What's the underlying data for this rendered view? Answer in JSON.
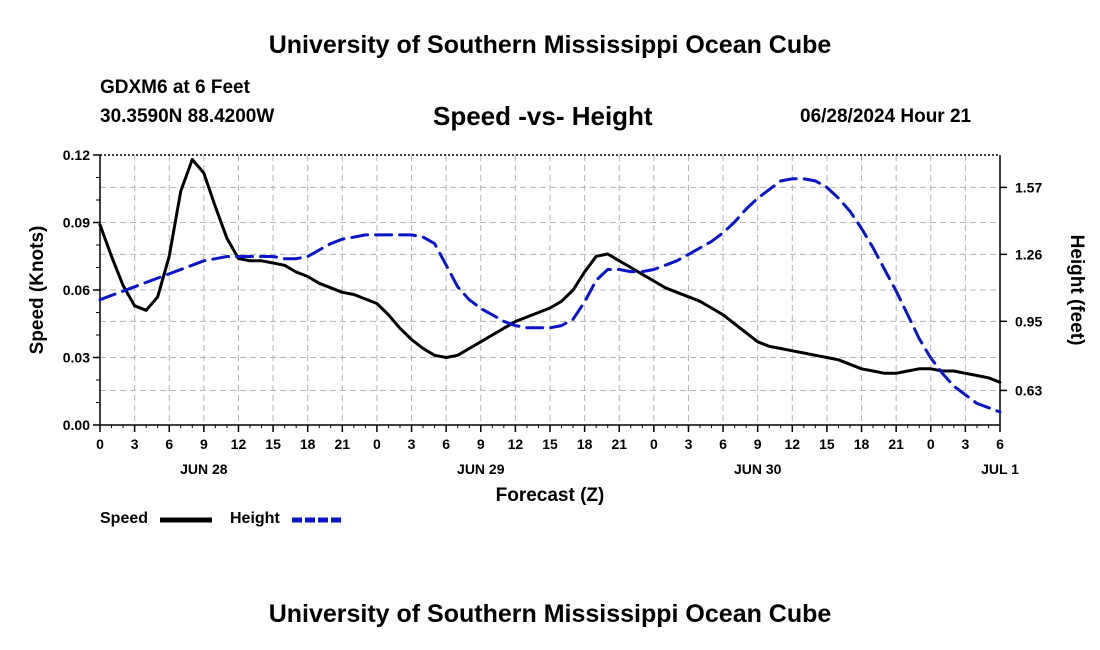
{
  "header": {
    "title": "University of Southern Mississippi Ocean Cube",
    "station": "GDXM6 at 6 Feet",
    "coords": "30.3590N  88.4200W",
    "subtitle": "Speed -vs- Height",
    "datetime": "06/28/2024 Hour 21"
  },
  "footer": {
    "title": "University of Southern Mississippi Ocean Cube"
  },
  "legend": {
    "speed_label": "Speed",
    "height_label": "Height"
  },
  "colors": {
    "speed": "#000000",
    "height": "#0a14c8",
    "grid": "#b4b4b4"
  },
  "chart_data": {
    "type": "line",
    "title": "Speed -vs- Height",
    "xlabel": "Forecast (Z)",
    "ylabel": "Speed (Knots)",
    "y2label": "Height (feet)",
    "x_tick_labels": [
      "0",
      "3",
      "6",
      "9",
      "12",
      "15",
      "18",
      "21",
      "0",
      "3",
      "6",
      "9",
      "12",
      "15",
      "18",
      "21",
      "0",
      "3",
      "6",
      "9",
      "12",
      "15",
      "18",
      "21",
      "0",
      "3",
      "6"
    ],
    "date_labels": [
      {
        "label": "JUN 28",
        "hour": 9
      },
      {
        "label": "JUN 29",
        "hour": 33
      },
      {
        "label": "JUN 30",
        "hour": 57
      },
      {
        "label": "JUL 1",
        "hour": 78
      }
    ],
    "xlim": [
      0,
      78
    ],
    "ylim": [
      0,
      0.12
    ],
    "y_ticks": [
      "0.00",
      "0.03",
      "0.06",
      "0.09",
      "0.12"
    ],
    "y2lim": [
      0.47,
      1.72
    ],
    "y2_ticks": [
      "0.63",
      "0.95",
      "1.26",
      "1.57"
    ],
    "x_hours": [
      0,
      1,
      2,
      3,
      4,
      5,
      6,
      7,
      8,
      9,
      10,
      11,
      12,
      13,
      14,
      15,
      16,
      17,
      18,
      19,
      20,
      21,
      22,
      23,
      24,
      25,
      26,
      27,
      28,
      29,
      30,
      31,
      32,
      33,
      34,
      35,
      36,
      37,
      38,
      39,
      40,
      41,
      42,
      43,
      44,
      45,
      46,
      47,
      48,
      49,
      50,
      51,
      52,
      53,
      54,
      55,
      56,
      57,
      58,
      59,
      60,
      61,
      62,
      63,
      64,
      65,
      66,
      67,
      68,
      69,
      70,
      71,
      72,
      73,
      74,
      75,
      76,
      77,
      78
    ],
    "series": [
      {
        "name": "Speed",
        "axis": "left",
        "style": "solid",
        "values": [
          0.089,
          0.075,
          0.062,
          0.053,
          0.051,
          0.057,
          0.075,
          0.104,
          0.118,
          0.112,
          0.097,
          0.083,
          0.074,
          0.073,
          0.073,
          0.072,
          0.071,
          0.068,
          0.066,
          0.063,
          0.061,
          0.059,
          0.058,
          0.056,
          0.054,
          0.049,
          0.043,
          0.038,
          0.034,
          0.031,
          0.03,
          0.031,
          0.034,
          0.037,
          0.04,
          0.043,
          0.046,
          0.048,
          0.05,
          0.052,
          0.055,
          0.06,
          0.068,
          0.075,
          0.076,
          0.073,
          0.07,
          0.067,
          0.064,
          0.061,
          0.059,
          0.057,
          0.055,
          0.052,
          0.049,
          0.045,
          0.041,
          0.037,
          0.035,
          0.034,
          0.033,
          0.032,
          0.031,
          0.03,
          0.029,
          0.027,
          0.025,
          0.024,
          0.023,
          0.023,
          0.024,
          0.025,
          0.025,
          0.024,
          0.024,
          0.023,
          0.022,
          0.021,
          0.019
        ]
      },
      {
        "name": "Height",
        "axis": "right",
        "style": "dashed",
        "values": [
          1.05,
          1.07,
          1.09,
          1.11,
          1.13,
          1.15,
          1.17,
          1.19,
          1.21,
          1.23,
          1.24,
          1.25,
          1.25,
          1.25,
          1.25,
          1.25,
          1.24,
          1.24,
          1.25,
          1.28,
          1.31,
          1.33,
          1.34,
          1.35,
          1.35,
          1.35,
          1.35,
          1.35,
          1.34,
          1.31,
          1.21,
          1.11,
          1.05,
          1.01,
          0.98,
          0.95,
          0.93,
          0.92,
          0.92,
          0.92,
          0.93,
          0.96,
          1.04,
          1.14,
          1.19,
          1.19,
          1.18,
          1.18,
          1.19,
          1.21,
          1.23,
          1.26,
          1.29,
          1.32,
          1.36,
          1.41,
          1.47,
          1.52,
          1.56,
          1.6,
          1.61,
          1.61,
          1.6,
          1.57,
          1.52,
          1.46,
          1.38,
          1.29,
          1.19,
          1.09,
          0.98,
          0.87,
          0.78,
          0.71,
          0.65,
          0.61,
          0.57,
          0.55,
          0.53
        ]
      }
    ]
  }
}
